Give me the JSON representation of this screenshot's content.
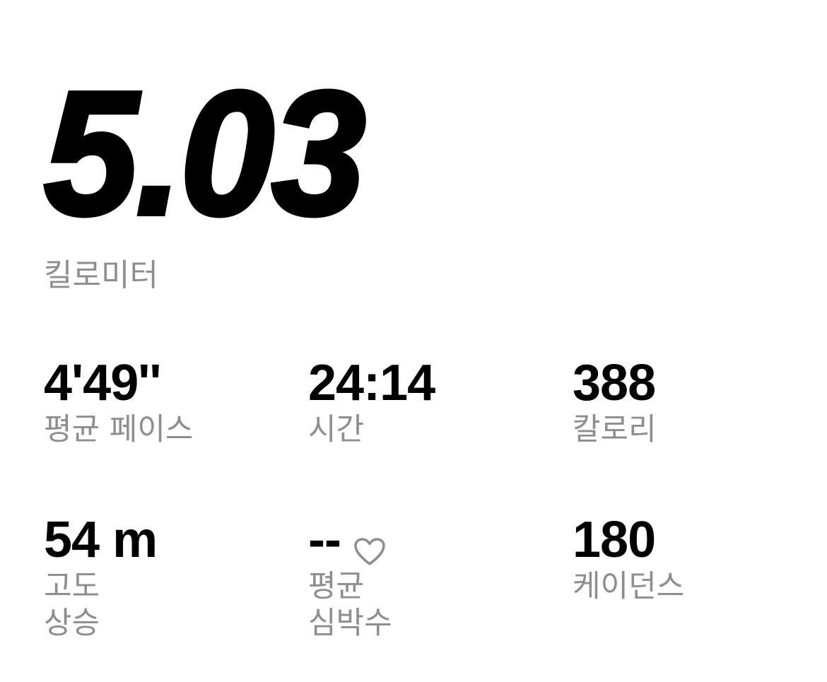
{
  "distance": {
    "value": "5.03",
    "unit": "킬로미터"
  },
  "stats": {
    "pace": {
      "value": "4'49''",
      "label": "평균 페이스"
    },
    "time": {
      "value": "24:14",
      "label": "시간"
    },
    "calories": {
      "value": "388",
      "label": "칼로리"
    },
    "elevation": {
      "value": "54 m",
      "label_line1": "고도",
      "label_line2": "상승"
    },
    "heartrate": {
      "value": "--",
      "label_line1": "평균",
      "label_line2": "심박수",
      "icon": "heart-outline-icon"
    },
    "cadence": {
      "value": "180",
      "label": "케이던스"
    }
  },
  "colors": {
    "primary_text": "#000000",
    "secondary_text": "#8e8e8e",
    "icon": "#8e8e8e",
    "background": "#ffffff"
  }
}
